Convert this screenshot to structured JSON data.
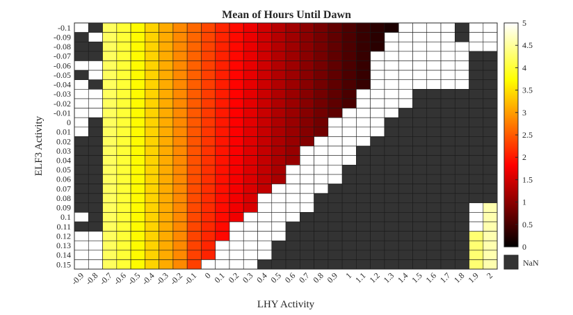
{
  "chart_data": {
    "type": "heatmap",
    "title": "Mean of Hours Until Dawn",
    "xlabel": "LHY Activity",
    "ylabel": "ELF3 Activity",
    "x_ticks": [
      "-0.9",
      "-0.8",
      "-0.7",
      "-0.6",
      "-0.5",
      "-0.4",
      "-0.3",
      "-0.2",
      "-0.1",
      "0",
      "0.1",
      "0.2",
      "0.3",
      "0.4",
      "0.5",
      "0.6",
      "0.7",
      "0.8",
      "0.9",
      "1",
      "1.1",
      "1.2",
      "1.3",
      "1.4",
      "1.5",
      "1.6",
      "1.7",
      "1.8",
      "1.9",
      "2"
    ],
    "y_ticks": [
      "-0.1",
      "-0.09",
      "-0.08",
      "-0.07",
      "-0.06",
      "-0.05",
      "-0.04",
      "-0.03",
      "-0.02",
      "-0.01",
      "0",
      "0.01",
      "0.02",
      "0.03",
      "0.04",
      "0.05",
      "0.06",
      "0.07",
      "0.08",
      "0.09",
      "0.1",
      "0.11",
      "0.12",
      "0.13",
      "0.14",
      "0.15"
    ],
    "colorbar": {
      "min": 0,
      "max": 5,
      "ticks": [
        "0",
        "0.5",
        "1",
        "1.5",
        "2",
        "2.5",
        "3",
        "3.5",
        "4",
        "4.5",
        "5"
      ],
      "colormap": "hot",
      "nan_label": "NaN",
      "nan_color": "#333333"
    },
    "column_profile": [
      5,
      5,
      4.2,
      4.0,
      3.7,
      3.4,
      3.1,
      2.85,
      2.6,
      2.35,
      2.1,
      1.9,
      1.7,
      1.5,
      1.3,
      1.15,
      1.0,
      0.85,
      0.7,
      0.55,
      0.4,
      0.3,
      0.2,
      0.1,
      0.05,
      0.02,
      0.01,
      0.01,
      4.3,
      4.5
    ],
    "masks": {
      "nan_left": [
        [
          1,
          0
        ],
        [
          2,
          0
        ],
        [
          3,
          0
        ],
        [
          5,
          0
        ],
        [
          12,
          0
        ],
        [
          13,
          0
        ],
        [
          14,
          0
        ],
        [
          15,
          0
        ],
        [
          16,
          0
        ],
        [
          17,
          0
        ],
        [
          18,
          0
        ],
        [
          19,
          0
        ],
        [
          21,
          0
        ],
        [
          0,
          1
        ],
        [
          2,
          1
        ],
        [
          3,
          1
        ],
        [
          6,
          1
        ],
        [
          10,
          1
        ],
        [
          11,
          1
        ],
        [
          12,
          1
        ],
        [
          13,
          1
        ],
        [
          14,
          1
        ],
        [
          15,
          1
        ],
        [
          16,
          1
        ],
        [
          17,
          1
        ],
        [
          18,
          1
        ],
        [
          19,
          1
        ],
        [
          20,
          1
        ],
        [
          21,
          1
        ]
      ],
      "white_extra": [
        [
          0,
          0
        ],
        [
          1,
          1
        ],
        [
          4,
          1
        ],
        [
          4,
          0
        ],
        [
          6,
          0
        ],
        [
          7,
          0
        ],
        [
          8,
          0
        ],
        [
          9,
          0
        ],
        [
          10,
          0
        ],
        [
          11,
          0
        ],
        [
          20,
          0
        ],
        [
          22,
          0
        ],
        [
          23,
          0
        ],
        [
          24,
          0
        ],
        [
          25,
          0
        ],
        [
          23,
          1
        ],
        [
          24,
          1
        ],
        [
          22,
          1
        ],
        [
          5,
          1
        ],
        [
          7,
          1
        ],
        [
          8,
          1
        ],
        [
          9,
          1
        ]
      ]
    }
  }
}
